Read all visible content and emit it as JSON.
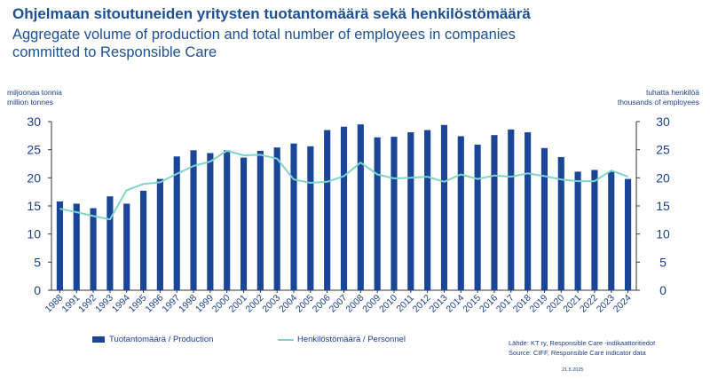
{
  "header": {
    "title_fi": "Ohjelmaan sitoutuneiden yritysten tuotantomäärä sekä henkilöstömäärä",
    "title_en": "Aggregate volume of production and total number of employees in companies committed to Responsible Care"
  },
  "axes": {
    "left_unit_fi": "miljoonaa tonnia",
    "left_unit_en": "million tonnes",
    "right_unit_fi": "tuhatta henkilöä",
    "right_unit_en": "thousands of employees"
  },
  "legend": {
    "production": "Tuotantomäärä / Production",
    "personnel": "Henkilöstömäärä / Personnel"
  },
  "footer": {
    "source_fi": "Lähde: KT ry, Responsible Care -indikaattoritiedot",
    "source_en": "Source: CIFF, Responsible Care indicator data",
    "date": "21.5.2025"
  },
  "colors": {
    "bar": "#1b4698",
    "line": "#7fd3c8",
    "text": "#1d3e8a",
    "axis": "#333333"
  },
  "chart_data": {
    "type": "bar",
    "categories": [
      "1988",
      "1991",
      "1992",
      "1993",
      "1994",
      "1995",
      "1996",
      "1997",
      "1998",
      "1999",
      "2000",
      "2001",
      "2002",
      "2003",
      "2004",
      "2005",
      "2006",
      "2007",
      "2008",
      "2009",
      "2010",
      "2011",
      "2012",
      "2013",
      "2014",
      "2015",
      "2016",
      "2017",
      "2018",
      "2019",
      "2020",
      "2021",
      "2022",
      "2023",
      "2024"
    ],
    "series": [
      {
        "name": "Tuotantomäärä / Production",
        "type": "bar",
        "axis": "left",
        "values": [
          15.8,
          15.4,
          14.6,
          16.7,
          15.4,
          17.7,
          19.8,
          23.8,
          24.9,
          24.4,
          24.9,
          23.6,
          24.8,
          25.4,
          26.1,
          25.6,
          28.5,
          29.1,
          29.5,
          27.2,
          27.3,
          28.1,
          28.5,
          29.4,
          27.4,
          25.9,
          27.6,
          28.6,
          28.1,
          25.3,
          23.7,
          21.1,
          21.4,
          21.1,
          19.8
        ]
      },
      {
        "name": "Henkilöstömäärä / Personnel",
        "type": "line",
        "axis": "right",
        "values": [
          14.5,
          13.9,
          13.2,
          12.6,
          17.8,
          18.9,
          19.2,
          20.7,
          22.1,
          22.9,
          24.8,
          24.0,
          24.1,
          23.4,
          19.7,
          19.1,
          19.3,
          20.3,
          22.7,
          20.6,
          19.9,
          20.0,
          20.2,
          19.3,
          20.6,
          19.8,
          20.4,
          20.2,
          20.8,
          20.3,
          19.7,
          19.4,
          19.4,
          21.3,
          20.2
        ]
      }
    ],
    "ylim": [
      0,
      30
    ],
    "yticks": [
      0,
      5,
      10,
      15,
      20,
      25,
      30
    ],
    "y2lim": [
      0,
      30
    ],
    "y2ticks": [
      0,
      5,
      10,
      15,
      20,
      25,
      30
    ],
    "legend_position": "bottom"
  }
}
